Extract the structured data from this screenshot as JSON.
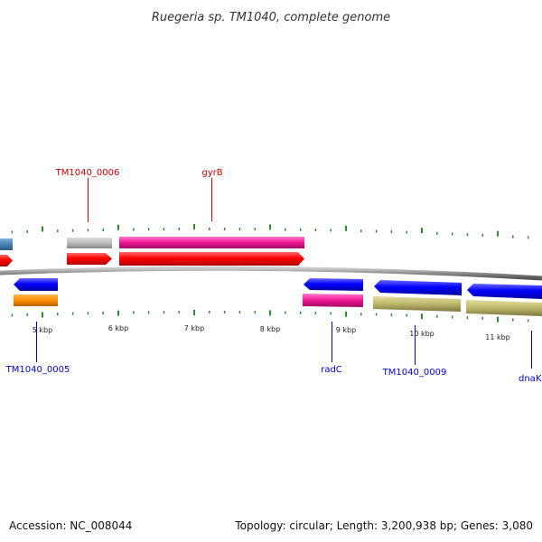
{
  "title": "Ruegeria sp. TM1040, complete genome",
  "footer": {
    "accession": "Accession: NC_008044",
    "summary": "Topology: circular; Length: 3,200,938 bp; Genes: 3,080"
  },
  "colors": {
    "background": "#ffffff",
    "backbone": "#8a8a8a",
    "tick": "#2e8b2e",
    "label_forward": "#cc0000",
    "label_reverse": "#0000cc"
  },
  "ticks": {
    "major_labels": [
      "5 kbp",
      "6 kbp",
      "7 kbp",
      "8 kbp",
      "9 kbp",
      "10 kbp",
      "11 kbp"
    ]
  },
  "labels": {
    "tm1040_0006": "TM1040_0006",
    "gyrb": "gyrB",
    "tm1040_0005": "TM1040_0005",
    "radc": "radC",
    "tm1040_0009": "TM1040_0009",
    "dnak": "dnaK"
  },
  "features": [
    {
      "name": "cds-left-edge",
      "strand": "forward",
      "color": "#ff0000"
    },
    {
      "name": "cds-tm1040-0006",
      "strand": "forward",
      "color": "#ff0000"
    },
    {
      "name": "cds-gyrb",
      "strand": "forward",
      "color": "#ff0000"
    },
    {
      "name": "cds-tm1040-0005",
      "strand": "reverse",
      "color": "#0000ff"
    },
    {
      "name": "cds-radc",
      "strand": "reverse",
      "color": "#0000ff"
    },
    {
      "name": "cds-tm1040-0009",
      "strand": "reverse",
      "color": "#0000ff"
    },
    {
      "name": "cds-dnak",
      "strand": "reverse",
      "color": "#0000ff"
    },
    {
      "name": "cog-left-edge",
      "strand": "forward",
      "color": "#4682b4"
    },
    {
      "name": "cog-tm1040-0006",
      "strand": "forward",
      "color": "#bbbbbb"
    },
    {
      "name": "cog-gyrb",
      "strand": "forward",
      "color": "#ee1493"
    },
    {
      "name": "cog-tm1040-0005",
      "strand": "reverse",
      "color": "#ff8c00"
    },
    {
      "name": "cog-radc",
      "strand": "reverse",
      "color": "#ee1493"
    },
    {
      "name": "cog-tm1040-0009",
      "strand": "reverse",
      "color": "#bdb76b"
    },
    {
      "name": "cog-dnak",
      "strand": "reverse",
      "color": "#bdb76b"
    }
  ]
}
